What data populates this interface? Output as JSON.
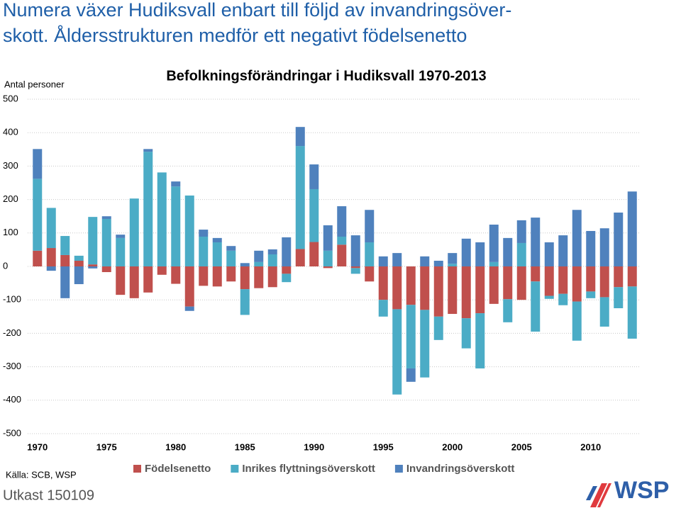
{
  "header": {
    "title_lines": [
      "Numera växer Hudiksvall enbart till följd av invandringsöver-",
      "skott. Åldersstrukturen medför ett negativt födelsenetto"
    ],
    "source": "Källa: SCB, WSP",
    "draft": "Utkast 150109",
    "logo": "WSP"
  },
  "chart_data": {
    "type": "bar",
    "stacked": true,
    "title": "Befolkningsförändringar i Hudiksvall 1970-2013",
    "ylabel": "Antal personer",
    "categories": [
      "1970",
      null,
      null,
      null,
      null,
      "1975",
      null,
      null,
      null,
      null,
      "1980",
      null,
      null,
      null,
      null,
      "1985",
      null,
      null,
      null,
      null,
      "1990",
      null,
      null,
      null,
      null,
      "1995",
      null,
      null,
      null,
      null,
      "2000",
      null,
      null,
      null,
      null,
      "2005",
      null,
      null,
      null,
      null,
      "2010",
      null,
      null,
      null
    ],
    "series": [
      {
        "name": "Födelsenetto",
        "color": "#c0504d",
        "values": [
          47,
          55,
          34,
          17,
          6,
          -17,
          -85,
          -95,
          -78,
          -25,
          -52,
          -120,
          -58,
          -60,
          -45,
          -68,
          -65,
          -62,
          -22,
          52,
          73,
          -5,
          65,
          -5,
          -45,
          -100,
          -128,
          -115,
          -130,
          -150,
          -142,
          -155,
          -140,
          -112,
          -98,
          -100,
          -45,
          -88,
          -82,
          -105,
          -75,
          -92,
          -62,
          -60
        ]
      },
      {
        "name": "Inrikes flyttningsöverskott",
        "color": "#4bacc6",
        "values": [
          215,
          120,
          57,
          15,
          142,
          142,
          85,
          203,
          343,
          281,
          239,
          212,
          89,
          72,
          47,
          -77,
          13,
          36,
          -25,
          308,
          158,
          47,
          24,
          -17,
          72,
          -50,
          -255,
          -190,
          -202,
          -70,
          8,
          -90,
          -165,
          13,
          -69,
          70,
          -150,
          -9,
          -34,
          -117,
          -20,
          -88,
          -63,
          -156
        ]
      },
      {
        "name": "Invandringsöverskott",
        "color": "#4f81bd",
        "values": [
          89,
          -13,
          -95,
          -53,
          -6,
          8,
          10,
          0,
          8,
          0,
          15,
          -13,
          21,
          13,
          14,
          10,
          34,
          15,
          87,
          57,
          74,
          76,
          91,
          93,
          97,
          30,
          40,
          -40,
          30,
          17,
          32,
          83,
          72,
          112,
          85,
          68,
          146,
          72,
          93,
          169,
          106,
          114,
          161,
          224
        ]
      }
    ],
    "ylim": [
      -500,
      500
    ],
    "yticks": [
      -500,
      -400,
      -300,
      -200,
      -100,
      0,
      100,
      200,
      300,
      400,
      500
    ],
    "grid": true,
    "legend": "bottom"
  }
}
